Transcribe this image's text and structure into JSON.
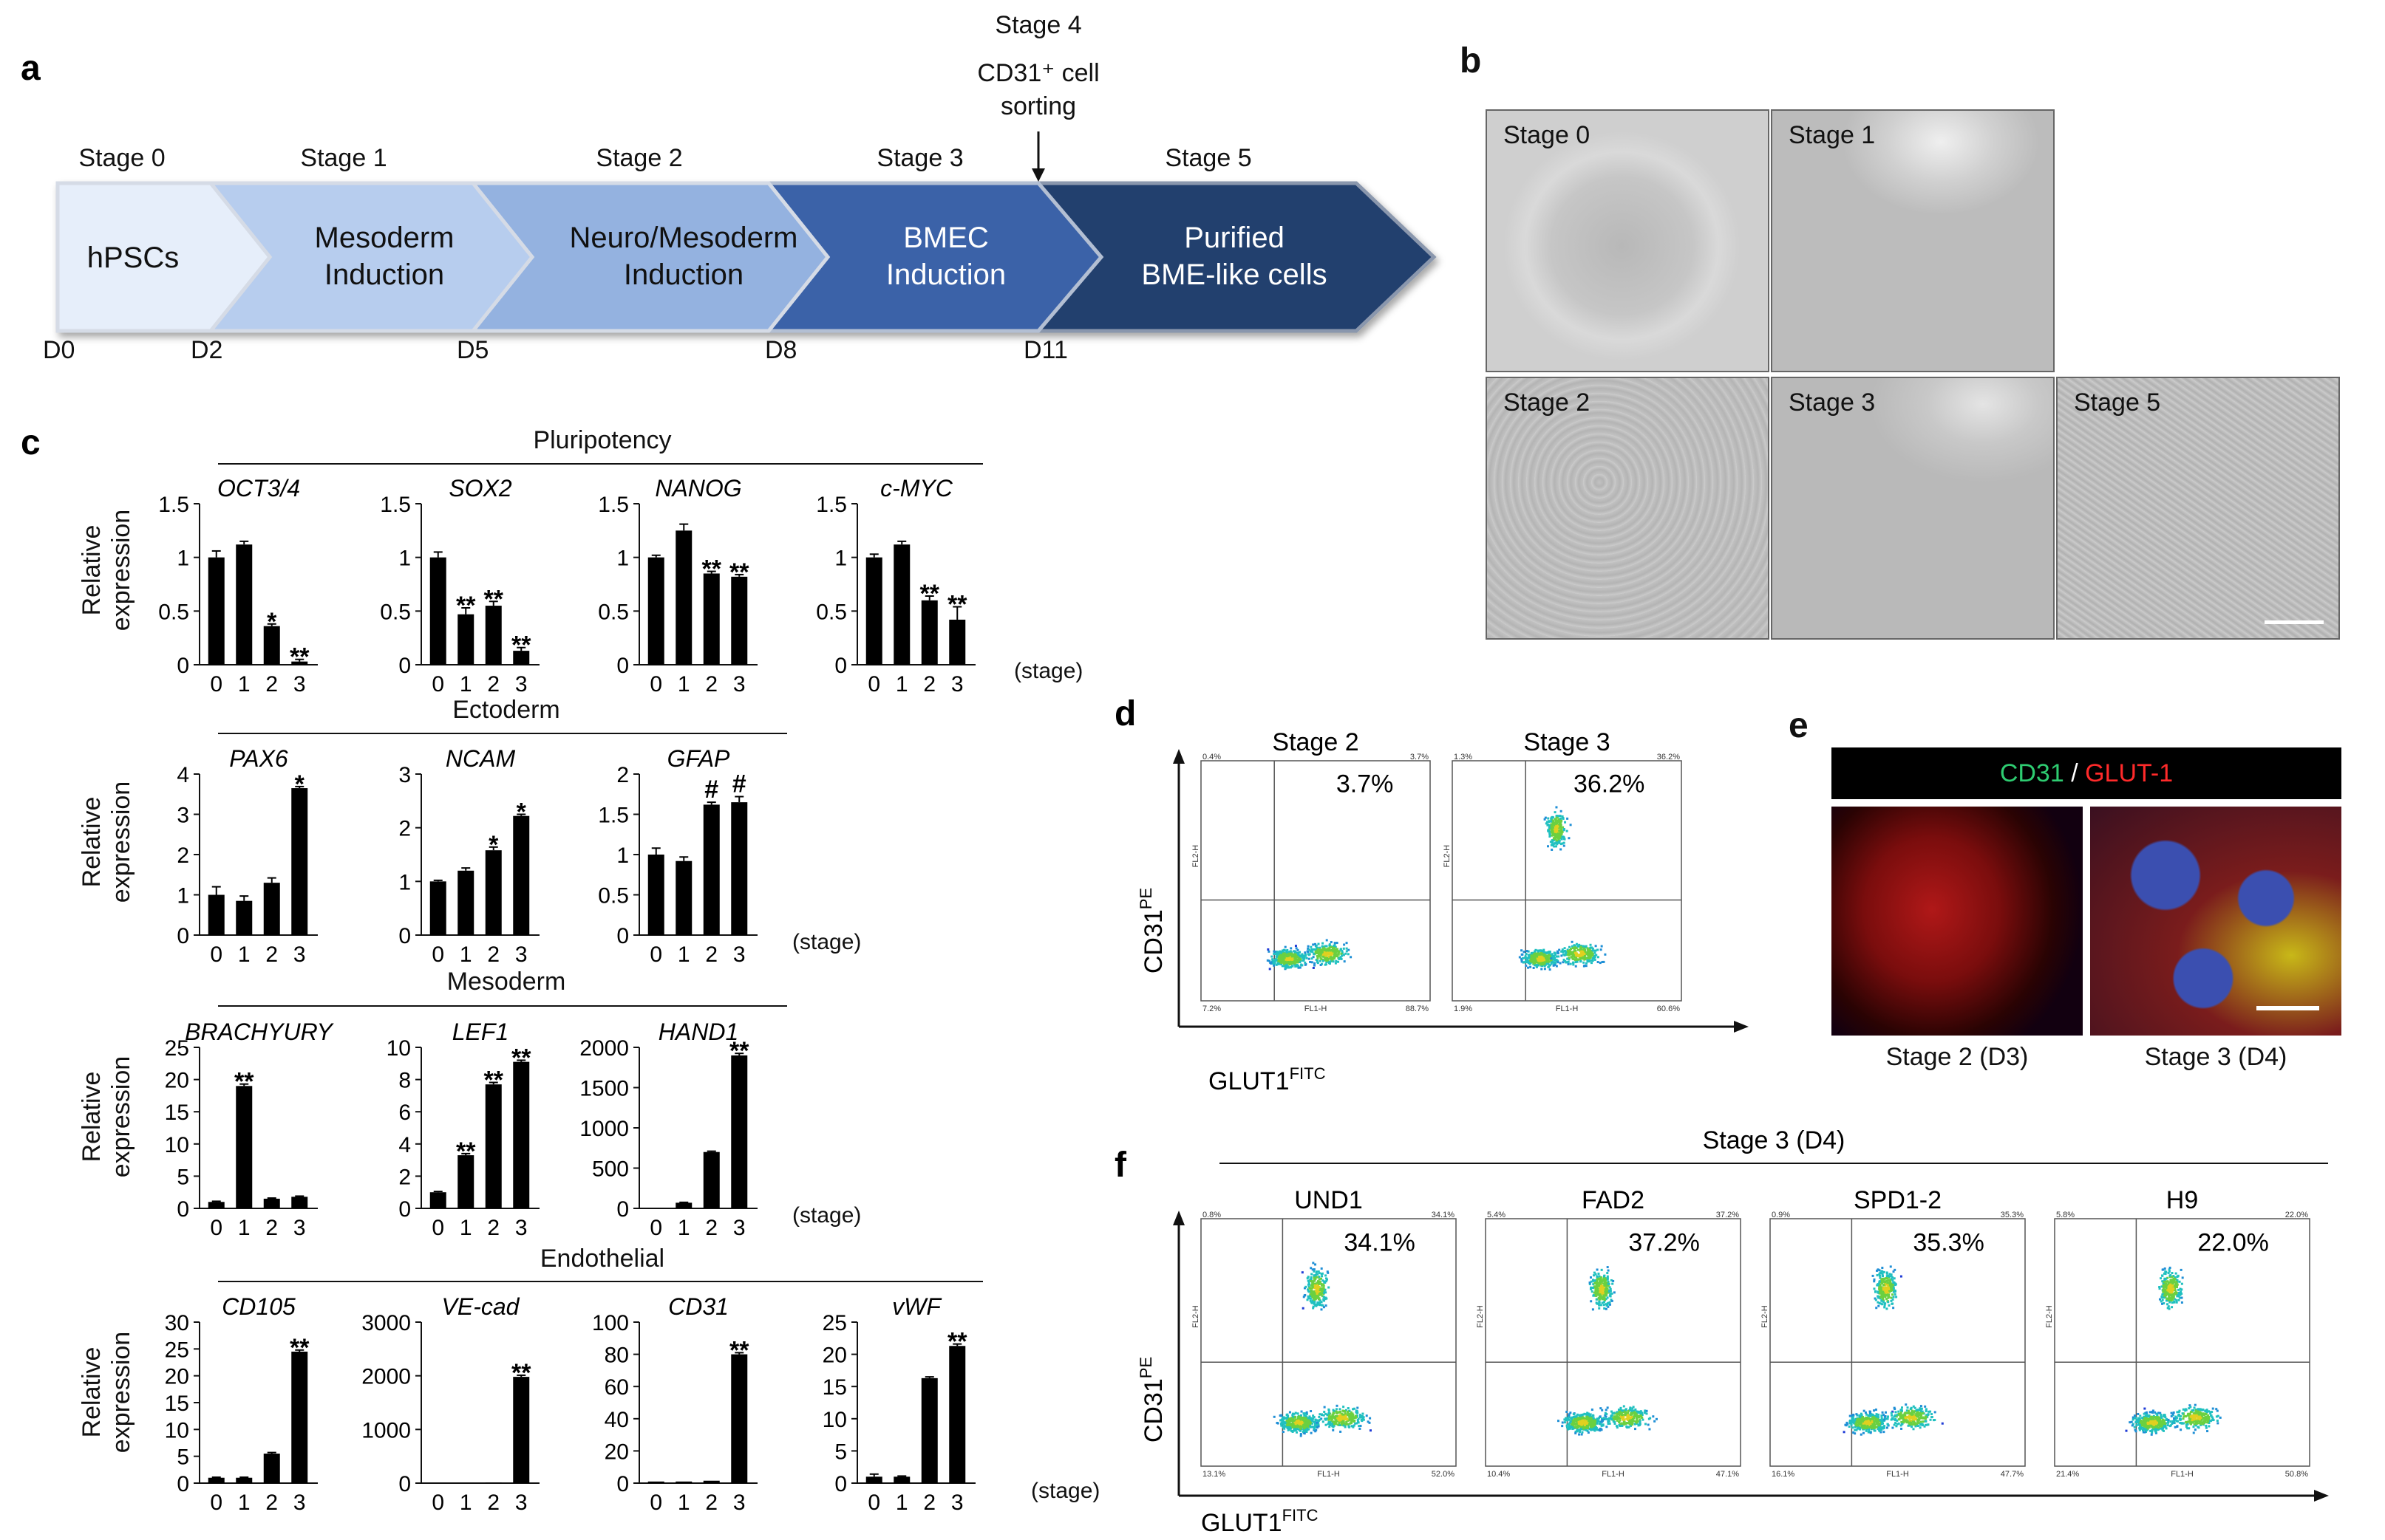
{
  "panel_a": {
    "letter": "a",
    "stage4": {
      "title": "Stage 4",
      "line1": "CD31⁺ cell",
      "line2": "sorting"
    },
    "stages": [
      {
        "label": "Stage 0",
        "line1": "hPSCs",
        "line2": ""
      },
      {
        "label": "Stage 1",
        "line1": "Mesoderm",
        "line2": "Induction"
      },
      {
        "label": "Stage 2",
        "line1": "Neuro/Mesoderm",
        "line2": "Induction"
      },
      {
        "label": "Stage 3",
        "line1": "BMEC",
        "line2": "Induction"
      },
      {
        "label": "Stage 5",
        "line1": "Purified",
        "line2": "BME-like cells"
      }
    ],
    "days": [
      "D0",
      "D2",
      "D5",
      "D8",
      "D11"
    ],
    "colors": [
      "#e6eefa",
      "#b7cdee",
      "#94b2e0",
      "#3b62a8",
      "#243f6e"
    ]
  },
  "panel_b": {
    "letter": "b",
    "images": [
      "Stage 0",
      "Stage 1",
      "Stage 2",
      "Stage 3",
      "Stage 5"
    ]
  },
  "panel_c": {
    "letter": "c",
    "ylabel_line1": "Relative",
    "ylabel_line2": "expression",
    "stage_suffix": "(stage)",
    "groups": [
      {
        "title": "Pluripotency"
      },
      {
        "title": "Ectoderm"
      },
      {
        "title": "Mesoderm"
      },
      {
        "title": "Endothelial"
      }
    ],
    "chart_data": [
      {
        "type": "bar",
        "title": "OCT3/4",
        "categories": [
          "0",
          "1",
          "2",
          "3"
        ],
        "values": [
          1.0,
          1.12,
          0.36,
          0.03
        ],
        "errors": [
          0.06,
          0.03,
          0.02,
          0.02
        ],
        "sig": [
          "",
          "",
          "*",
          "**"
        ],
        "yticks": [
          "0",
          "0.5",
          "1",
          "1.5"
        ],
        "ylim": [
          0,
          1.5
        ]
      },
      {
        "type": "bar",
        "title": "SOX2",
        "categories": [
          "0",
          "1",
          "2",
          "3"
        ],
        "values": [
          1.0,
          0.47,
          0.55,
          0.13
        ],
        "errors": [
          0.05,
          0.06,
          0.04,
          0.03
        ],
        "sig": [
          "",
          "**",
          "**",
          "**"
        ],
        "yticks": [
          "0",
          "0.5",
          "1",
          "1.5"
        ],
        "ylim": [
          0,
          1.5
        ]
      },
      {
        "type": "bar",
        "title": "NANOG",
        "categories": [
          "0",
          "1",
          "2",
          "3"
        ],
        "values": [
          1.0,
          1.25,
          0.85,
          0.82
        ],
        "errors": [
          0.02,
          0.06,
          0.02,
          0.02
        ],
        "sig": [
          "",
          "",
          "**",
          "**"
        ],
        "yticks": [
          "0",
          "0.5",
          "1",
          "1.5"
        ],
        "ylim": [
          0,
          1.5
        ]
      },
      {
        "type": "bar",
        "title": "c-MYC",
        "categories": [
          "0",
          "1",
          "2",
          "3"
        ],
        "values": [
          1.0,
          1.12,
          0.6,
          0.42
        ],
        "errors": [
          0.03,
          0.03,
          0.04,
          0.12
        ],
        "sig": [
          "",
          "",
          "**",
          "**"
        ],
        "yticks": [
          "0",
          "0.5",
          "1",
          "1.5"
        ],
        "ylim": [
          0,
          1.5
        ]
      },
      {
        "type": "bar",
        "title": "PAX6",
        "categories": [
          "0",
          "1",
          "2",
          "3"
        ],
        "values": [
          1.0,
          0.85,
          1.3,
          3.65
        ],
        "errors": [
          0.2,
          0.12,
          0.12,
          0.04
        ],
        "sig": [
          "",
          "",
          "",
          "*"
        ],
        "yticks": [
          "0",
          "1",
          "2",
          "3",
          "4"
        ],
        "ylim": [
          0,
          4
        ]
      },
      {
        "type": "bar",
        "title": "NCAM",
        "categories": [
          "0",
          "1",
          "2",
          "3"
        ],
        "values": [
          1.0,
          1.2,
          1.58,
          2.22
        ],
        "errors": [
          0.02,
          0.05,
          0.06,
          0.03
        ],
        "sig": [
          "",
          "",
          "*",
          "*"
        ],
        "yticks": [
          "0",
          "1",
          "2",
          "3"
        ],
        "ylim": [
          0,
          3
        ]
      },
      {
        "type": "bar",
        "title": "GFAP",
        "categories": [
          "0",
          "1",
          "2",
          "3"
        ],
        "values": [
          1.0,
          0.92,
          1.62,
          1.65
        ],
        "errors": [
          0.08,
          0.05,
          0.03,
          0.07
        ],
        "sig": [
          "",
          "",
          "#",
          "#"
        ],
        "yticks": [
          "0",
          "0.5",
          "1",
          "1.5",
          "2"
        ],
        "ylim": [
          0,
          2
        ]
      },
      {
        "type": "bar",
        "title": "BRACHYURY",
        "categories": [
          "0",
          "1",
          "2",
          "3"
        ],
        "values": [
          1.0,
          19.0,
          1.5,
          1.8
        ],
        "errors": [
          0.1,
          0.3,
          0.1,
          0.1
        ],
        "sig": [
          "",
          "**",
          "",
          ""
        ],
        "yticks": [
          "0",
          "5",
          "10",
          "15",
          "20",
          "25"
        ],
        "ylim": [
          0,
          25
        ]
      },
      {
        "type": "bar",
        "title": "LEF1",
        "categories": [
          "0",
          "1",
          "2",
          "3"
        ],
        "values": [
          1.0,
          3.3,
          7.7,
          9.1
        ],
        "errors": [
          0.05,
          0.1,
          0.12,
          0.1
        ],
        "sig": [
          "",
          "**",
          "**",
          "**"
        ],
        "yticks": [
          "0",
          "2",
          "4",
          "6",
          "8",
          "10"
        ],
        "ylim": [
          0,
          10
        ]
      },
      {
        "type": "bar",
        "title": "HAND1",
        "categories": [
          "0",
          "1",
          "2",
          "3"
        ],
        "values": [
          1,
          70,
          700,
          1900
        ],
        "errors": [
          0,
          5,
          10,
          25
        ],
        "sig": [
          "",
          "",
          "",
          "**"
        ],
        "yticks": [
          "0",
          "500",
          "1000",
          "1500",
          "2000"
        ],
        "ylim": [
          0,
          2000
        ]
      },
      {
        "type": "bar",
        "title": "CD105",
        "categories": [
          "0",
          "1",
          "2",
          "3"
        ],
        "values": [
          1.0,
          1.0,
          5.5,
          24.5
        ],
        "errors": [
          0.1,
          0.1,
          0.2,
          0.3
        ],
        "sig": [
          "",
          "",
          "",
          "**"
        ],
        "yticks": [
          "0",
          "5",
          "10",
          "15",
          "20",
          "25",
          "30"
        ],
        "ylim": [
          0,
          30
        ]
      },
      {
        "type": "bar",
        "title": "VE-cad",
        "categories": [
          "0",
          "1",
          "2",
          "3"
        ],
        "values": [
          1,
          1,
          10,
          1980
        ],
        "errors": [
          0,
          0,
          0,
          30
        ],
        "sig": [
          "",
          "",
          "",
          "**"
        ],
        "yticks": [
          "0",
          "1000",
          "2000",
          "3000"
        ],
        "ylim": [
          0,
          3000
        ]
      },
      {
        "type": "bar",
        "title": "CD31",
        "categories": [
          "0",
          "1",
          "2",
          "3"
        ],
        "values": [
          1,
          1,
          1.5,
          80
        ],
        "errors": [
          0,
          0,
          0,
          1
        ],
        "sig": [
          "",
          "",
          "",
          "**"
        ],
        "yticks": [
          "0",
          "20",
          "40",
          "60",
          "80",
          "100"
        ],
        "ylim": [
          0,
          100
        ]
      },
      {
        "type": "bar",
        "title": "vWF",
        "categories": [
          "0",
          "1",
          "2",
          "3"
        ],
        "values": [
          1.0,
          1.0,
          16.3,
          21.3
        ],
        "errors": [
          0.4,
          0.1,
          0.2,
          0.3
        ],
        "sig": [
          "",
          "",
          "",
          "**"
        ],
        "yticks": [
          "0",
          "5",
          "10",
          "15",
          "20",
          "25"
        ],
        "ylim": [
          0,
          25
        ]
      }
    ]
  },
  "panel_d": {
    "letter": "d",
    "ylabel": "CD31",
    "ylabel_sup": "PE",
    "xlabel": "GLUT1",
    "xlabel_sup": "FITC",
    "plots": [
      {
        "title": "Stage 2",
        "percent": "3.7%",
        "q_ul": "0.4%",
        "q_ur": "3.7%",
        "q_ll": "7.2%",
        "q_lr": "88.7%"
      },
      {
        "title": "Stage 3",
        "percent": "36.2%",
        "q_ul": "1.3%",
        "q_ur": "36.2%",
        "q_ll": "1.9%",
        "q_lr": "60.6%"
      }
    ]
  },
  "panel_e": {
    "letter": "e",
    "header_green": "CD31",
    "header_sep": " / ",
    "header_red": "GLUT-1",
    "captions": [
      "Stage 2 (D3)",
      "Stage 3 (D4)"
    ]
  },
  "panel_f": {
    "letter": "f",
    "title": "Stage  3 (D4)",
    "ylabel": "CD31",
    "ylabel_sup": "PE",
    "xlabel": "GLUT1",
    "xlabel_sup": "FITC",
    "plots": [
      {
        "title": "UND1",
        "percent": "34.1%",
        "q_ul": "0.8%",
        "q_ur": "34.1%",
        "q_ll": "13.1%",
        "q_lr": "52.0%"
      },
      {
        "title": "FAD2",
        "percent": "37.2%",
        "q_ul": "5.4%",
        "q_ur": "37.2%",
        "q_ll": "10.4%",
        "q_lr": "47.1%"
      },
      {
        "title": "SPD1-2",
        "percent": "35.3%",
        "q_ul": "0.9%",
        "q_ur": "35.3%",
        "q_ll": "16.1%",
        "q_lr": "47.7%"
      },
      {
        "title": "H9",
        "percent": "22.0%",
        "q_ul": "5.8%",
        "q_ur": "22.0%",
        "q_ll": "21.4%",
        "q_lr": "50.8%"
      }
    ]
  },
  "facs_axis": {
    "fl1": "FL1-H",
    "fl2": "FL2-H"
  }
}
